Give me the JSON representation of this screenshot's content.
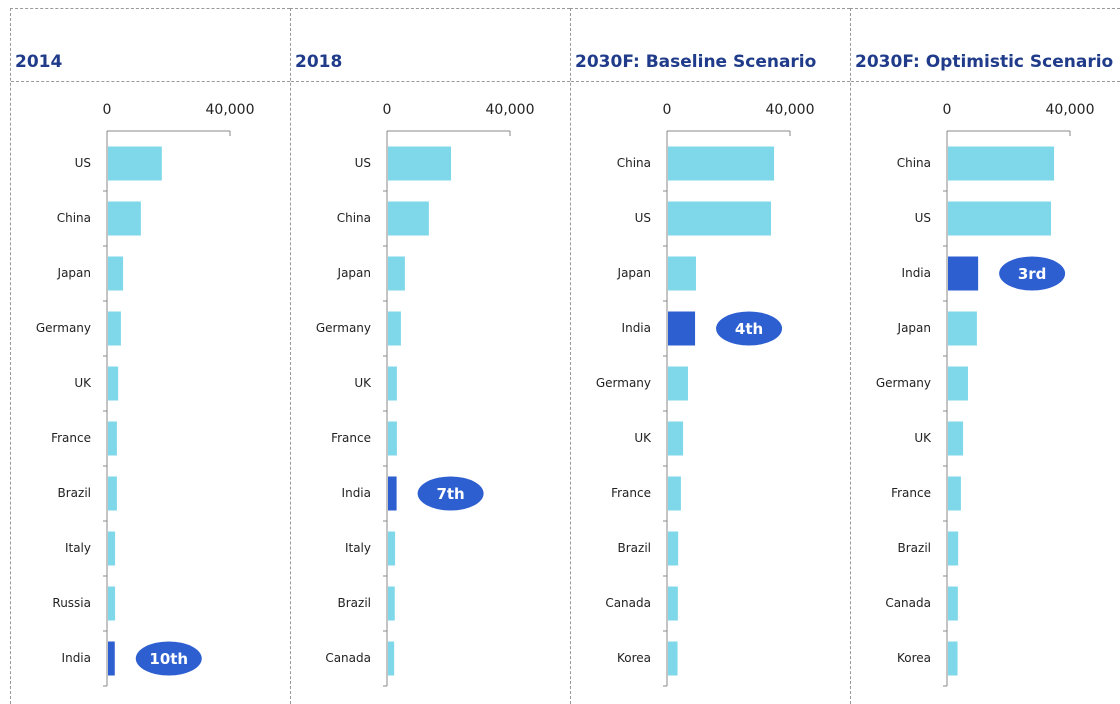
{
  "chart_data": [
    {
      "type": "hbar",
      "title": "2014",
      "categories": [
        "US",
        "China",
        "Japan",
        "Germany",
        "UK",
        "France",
        "Brazil",
        "Italy",
        "Russia",
        "India"
      ],
      "values": [
        17500,
        10700,
        4900,
        4200,
        3300,
        2900,
        2900,
        2300,
        2300,
        2200
      ],
      "color": "#7fd8ea",
      "highlight": "India",
      "highlight_color": "#2e5fd1",
      "annotation": "10th",
      "xlim": [
        0,
        40000
      ],
      "xticks": [
        0,
        {
          "value": 40000,
          "label": "40,000"
        }
      ]
    },
    {
      "type": "hbar",
      "title": "2018",
      "categories": [
        "US",
        "China",
        "Japan",
        "Germany",
        "UK",
        "France",
        "India",
        "Italy",
        "Brazil",
        "Canada"
      ],
      "values": [
        20500,
        13300,
        5500,
        4200,
        2900,
        2900,
        2800,
        2300,
        2200,
        2000
      ],
      "color": "#7fd8ea",
      "highlight": "India",
      "highlight_color": "#2e5fd1",
      "annotation": "7th",
      "xlim": [
        0,
        40000
      ],
      "xticks": [
        0,
        {
          "value": 40000,
          "label": "40,000"
        }
      ]
    },
    {
      "type": "hbar",
      "title": "2030F: Baseline Scenario",
      "categories": [
        "China",
        "US",
        "Japan",
        "India",
        "Germany",
        "UK",
        "France",
        "Brazil",
        "Canada",
        "Korea"
      ],
      "values": [
        34500,
        33500,
        9100,
        8800,
        6500,
        4900,
        4200,
        3300,
        3200,
        3100
      ],
      "color": "#7fd8ea",
      "highlight": "India",
      "highlight_color": "#2e5fd1",
      "annotation": "4th",
      "xlim": [
        0,
        40000
      ],
      "xticks": [
        0,
        {
          "value": 40000,
          "label": "40,000"
        }
      ]
    },
    {
      "type": "hbar",
      "title": "2030F: Optimistic Scenario",
      "categories": [
        "China",
        "US",
        "India",
        "Japan",
        "Germany",
        "UK",
        "France",
        "Brazil",
        "Canada",
        "Korea"
      ],
      "values": [
        34500,
        33500,
        9800,
        9400,
        6500,
        4900,
        4200,
        3300,
        3200,
        3100
      ],
      "color": "#7fd8ea",
      "highlight": "India",
      "highlight_color": "#2e5fd1",
      "annotation": "3rd",
      "xlim": [
        0,
        40000
      ],
      "xticks": [
        0,
        {
          "value": 40000,
          "label": "40,000"
        }
      ]
    }
  ]
}
